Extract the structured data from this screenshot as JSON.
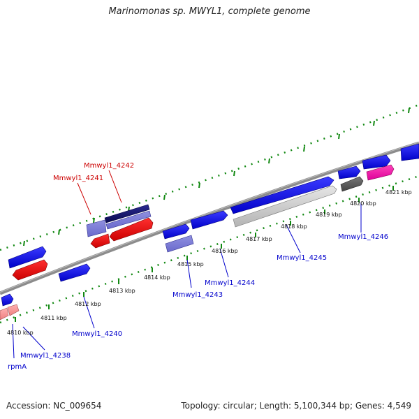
{
  "title": "Marinomonas sp. MWYL1, complete genome",
  "footer": {
    "accession": "Accession: NC_009654",
    "topology": "Topology: circular; Length: 5,100,344 bp; Genes: 4,549"
  },
  "ticks": [
    "4810 kbp",
    "4811 kbp",
    "4812 kbp",
    "4813 kbp",
    "4814 kbp",
    "4815 kbp",
    "4816 kbp",
    "4817 kbp",
    "4818 kbp",
    "4819 kbp",
    "4820 kbp",
    "4821 kbp"
  ],
  "gene_labels": {
    "top": [
      "Mmwyl1_4242",
      "Mmwyl1_4241"
    ],
    "bottom": [
      "Mmwyl1_4246",
      "Mmwyl1_4245",
      "Mmwyl1_4244",
      "Mmwyl1_4243",
      "Mmwyl1_4240",
      "Mmwyl1_4238",
      "rpmA"
    ]
  },
  "colors": {
    "forward_cds": "#0000ee",
    "reverse_cds": "#ee0000",
    "label_top": "#cc0000",
    "label_bottom": "#0000cc",
    "backbone": "#888888",
    "tick_dots": "#118811"
  }
}
